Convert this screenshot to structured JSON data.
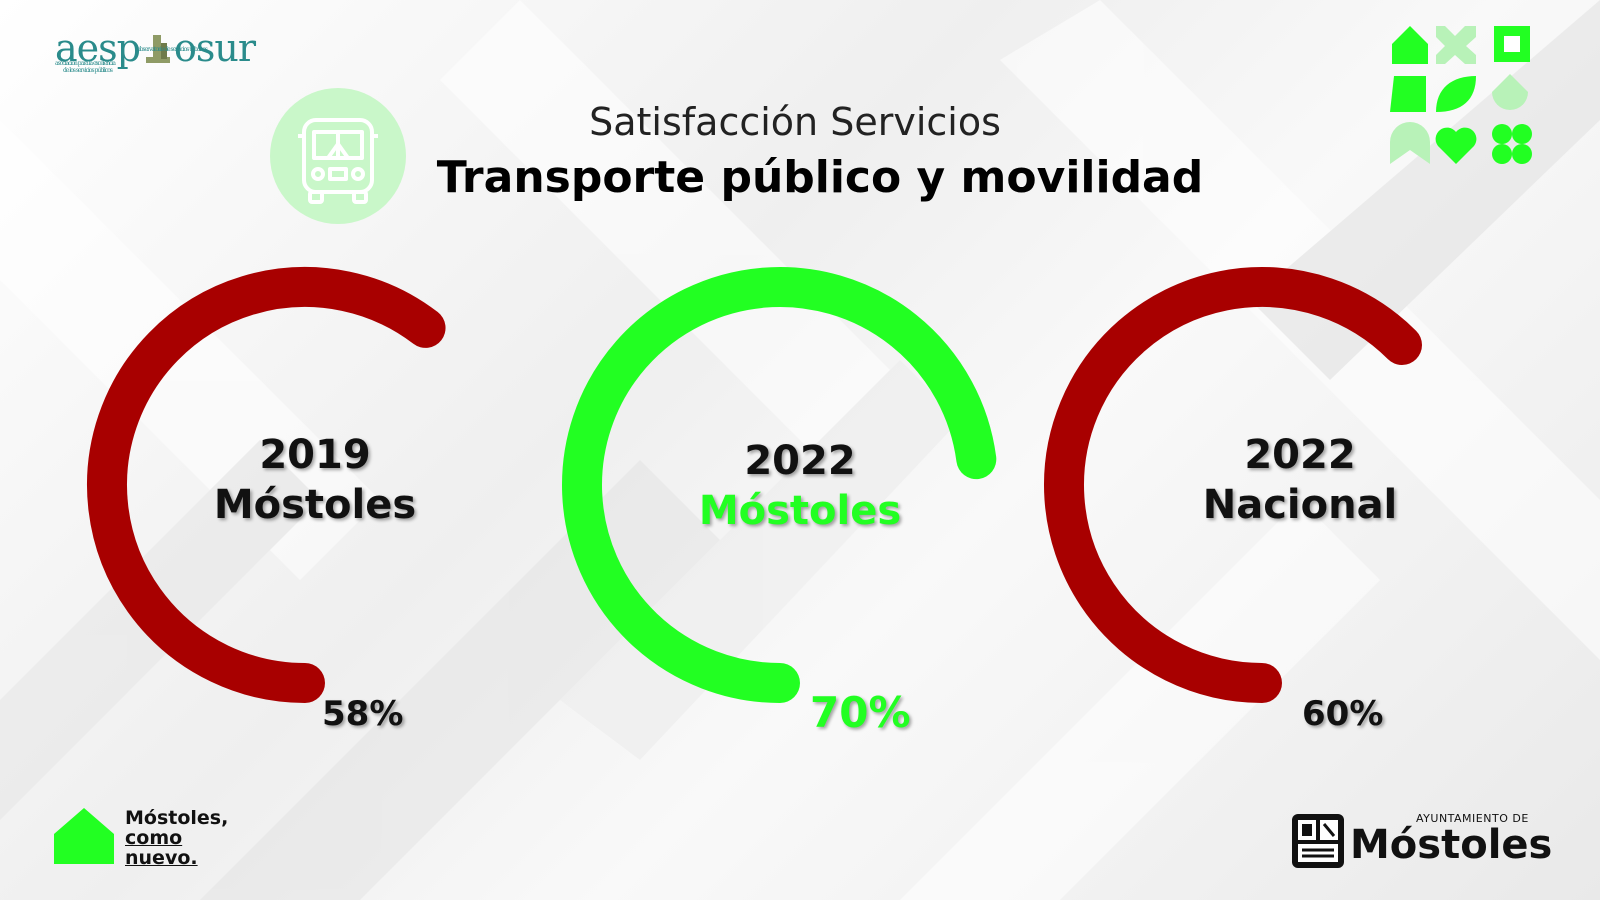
{
  "header": {
    "subtitle": "Satisfacción Servicios",
    "title": "Transporte público y movilidad"
  },
  "logos": {
    "aesp_text": "aesp",
    "aesp_suffix": "osur",
    "aesp_tagline_1": "observatorio de servicios urbanos",
    "aesp_tagline_2": "asociación para la excelencia",
    "aesp_tagline_3": "de los servicios públicos",
    "slogan_line1": "Móstoles,",
    "slogan_line2": "como",
    "slogan_line3": "nuevo.",
    "ayto_small": "AYUNTAMIENTO DE",
    "ayto_big": "Móstoles"
  },
  "colors": {
    "bad": "#a80000",
    "good": "#22ff22",
    "accent_light": "#c9f7c9"
  },
  "chart_data": {
    "type": "gauge",
    "items": [
      {
        "year": "2019",
        "place": "Móstoles",
        "label": "58%",
        "value": 58,
        "status": "bad"
      },
      {
        "year": "2022",
        "place": "Móstoles",
        "label": "70%",
        "value": 70,
        "status": "good"
      },
      {
        "year": "2022",
        "place": "Nacional",
        "label": "60%",
        "value": 60,
        "status": "bad"
      }
    ]
  }
}
